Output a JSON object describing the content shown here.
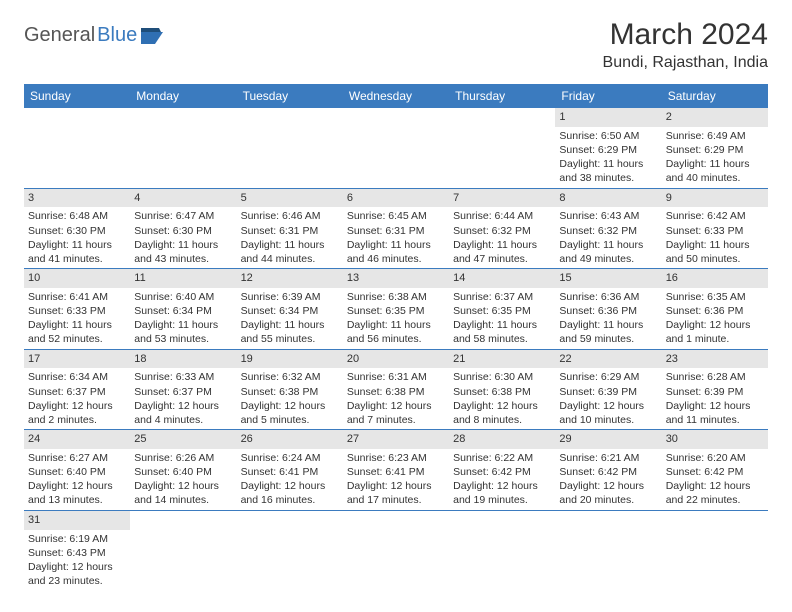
{
  "logo": {
    "text1": "General",
    "text2": "Blue"
  },
  "title": "March 2024",
  "location": "Bundi, Rajasthan, India",
  "colors": {
    "header_bg": "#3b7bbf",
    "header_fg": "#ffffff",
    "daybar_bg": "#e6e6e6",
    "border": "#3b7bbf",
    "text": "#333333"
  },
  "weekdays": [
    "Sunday",
    "Monday",
    "Tuesday",
    "Wednesday",
    "Thursday",
    "Friday",
    "Saturday"
  ],
  "weeks": [
    [
      null,
      null,
      null,
      null,
      null,
      {
        "n": "1",
        "sr": "Sunrise: 6:50 AM",
        "ss": "Sunset: 6:29 PM",
        "dl": "Daylight: 11 hours and 38 minutes."
      },
      {
        "n": "2",
        "sr": "Sunrise: 6:49 AM",
        "ss": "Sunset: 6:29 PM",
        "dl": "Daylight: 11 hours and 40 minutes."
      }
    ],
    [
      {
        "n": "3",
        "sr": "Sunrise: 6:48 AM",
        "ss": "Sunset: 6:30 PM",
        "dl": "Daylight: 11 hours and 41 minutes."
      },
      {
        "n": "4",
        "sr": "Sunrise: 6:47 AM",
        "ss": "Sunset: 6:30 PM",
        "dl": "Daylight: 11 hours and 43 minutes."
      },
      {
        "n": "5",
        "sr": "Sunrise: 6:46 AM",
        "ss": "Sunset: 6:31 PM",
        "dl": "Daylight: 11 hours and 44 minutes."
      },
      {
        "n": "6",
        "sr": "Sunrise: 6:45 AM",
        "ss": "Sunset: 6:31 PM",
        "dl": "Daylight: 11 hours and 46 minutes."
      },
      {
        "n": "7",
        "sr": "Sunrise: 6:44 AM",
        "ss": "Sunset: 6:32 PM",
        "dl": "Daylight: 11 hours and 47 minutes."
      },
      {
        "n": "8",
        "sr": "Sunrise: 6:43 AM",
        "ss": "Sunset: 6:32 PM",
        "dl": "Daylight: 11 hours and 49 minutes."
      },
      {
        "n": "9",
        "sr": "Sunrise: 6:42 AM",
        "ss": "Sunset: 6:33 PM",
        "dl": "Daylight: 11 hours and 50 minutes."
      }
    ],
    [
      {
        "n": "10",
        "sr": "Sunrise: 6:41 AM",
        "ss": "Sunset: 6:33 PM",
        "dl": "Daylight: 11 hours and 52 minutes."
      },
      {
        "n": "11",
        "sr": "Sunrise: 6:40 AM",
        "ss": "Sunset: 6:34 PM",
        "dl": "Daylight: 11 hours and 53 minutes."
      },
      {
        "n": "12",
        "sr": "Sunrise: 6:39 AM",
        "ss": "Sunset: 6:34 PM",
        "dl": "Daylight: 11 hours and 55 minutes."
      },
      {
        "n": "13",
        "sr": "Sunrise: 6:38 AM",
        "ss": "Sunset: 6:35 PM",
        "dl": "Daylight: 11 hours and 56 minutes."
      },
      {
        "n": "14",
        "sr": "Sunrise: 6:37 AM",
        "ss": "Sunset: 6:35 PM",
        "dl": "Daylight: 11 hours and 58 minutes."
      },
      {
        "n": "15",
        "sr": "Sunrise: 6:36 AM",
        "ss": "Sunset: 6:36 PM",
        "dl": "Daylight: 11 hours and 59 minutes."
      },
      {
        "n": "16",
        "sr": "Sunrise: 6:35 AM",
        "ss": "Sunset: 6:36 PM",
        "dl": "Daylight: 12 hours and 1 minute."
      }
    ],
    [
      {
        "n": "17",
        "sr": "Sunrise: 6:34 AM",
        "ss": "Sunset: 6:37 PM",
        "dl": "Daylight: 12 hours and 2 minutes."
      },
      {
        "n": "18",
        "sr": "Sunrise: 6:33 AM",
        "ss": "Sunset: 6:37 PM",
        "dl": "Daylight: 12 hours and 4 minutes."
      },
      {
        "n": "19",
        "sr": "Sunrise: 6:32 AM",
        "ss": "Sunset: 6:38 PM",
        "dl": "Daylight: 12 hours and 5 minutes."
      },
      {
        "n": "20",
        "sr": "Sunrise: 6:31 AM",
        "ss": "Sunset: 6:38 PM",
        "dl": "Daylight: 12 hours and 7 minutes."
      },
      {
        "n": "21",
        "sr": "Sunrise: 6:30 AM",
        "ss": "Sunset: 6:38 PM",
        "dl": "Daylight: 12 hours and 8 minutes."
      },
      {
        "n": "22",
        "sr": "Sunrise: 6:29 AM",
        "ss": "Sunset: 6:39 PM",
        "dl": "Daylight: 12 hours and 10 minutes."
      },
      {
        "n": "23",
        "sr": "Sunrise: 6:28 AM",
        "ss": "Sunset: 6:39 PM",
        "dl": "Daylight: 12 hours and 11 minutes."
      }
    ],
    [
      {
        "n": "24",
        "sr": "Sunrise: 6:27 AM",
        "ss": "Sunset: 6:40 PM",
        "dl": "Daylight: 12 hours and 13 minutes."
      },
      {
        "n": "25",
        "sr": "Sunrise: 6:26 AM",
        "ss": "Sunset: 6:40 PM",
        "dl": "Daylight: 12 hours and 14 minutes."
      },
      {
        "n": "26",
        "sr": "Sunrise: 6:24 AM",
        "ss": "Sunset: 6:41 PM",
        "dl": "Daylight: 12 hours and 16 minutes."
      },
      {
        "n": "27",
        "sr": "Sunrise: 6:23 AM",
        "ss": "Sunset: 6:41 PM",
        "dl": "Daylight: 12 hours and 17 minutes."
      },
      {
        "n": "28",
        "sr": "Sunrise: 6:22 AM",
        "ss": "Sunset: 6:42 PM",
        "dl": "Daylight: 12 hours and 19 minutes."
      },
      {
        "n": "29",
        "sr": "Sunrise: 6:21 AM",
        "ss": "Sunset: 6:42 PM",
        "dl": "Daylight: 12 hours and 20 minutes."
      },
      {
        "n": "30",
        "sr": "Sunrise: 6:20 AM",
        "ss": "Sunset: 6:42 PM",
        "dl": "Daylight: 12 hours and 22 minutes."
      }
    ],
    [
      {
        "n": "31",
        "sr": "Sunrise: 6:19 AM",
        "ss": "Sunset: 6:43 PM",
        "dl": "Daylight: 12 hours and 23 minutes."
      },
      null,
      null,
      null,
      null,
      null,
      null
    ]
  ]
}
